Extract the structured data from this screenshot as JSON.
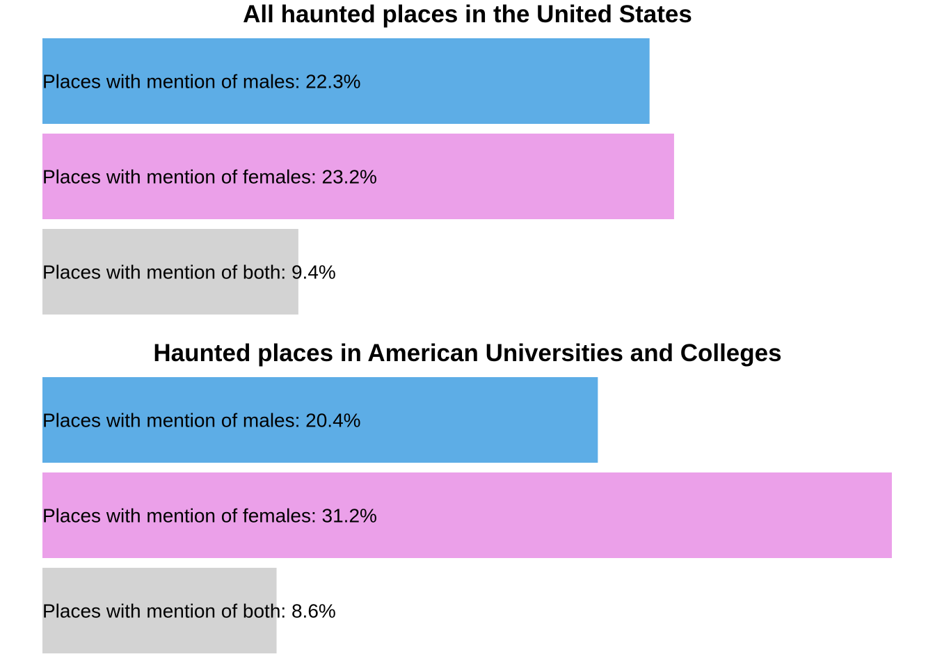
{
  "chart_data": [
    {
      "type": "bar",
      "orientation": "horizontal",
      "title": "All haunted places in the United States",
      "unit": "%",
      "categories": [
        "males",
        "females",
        "both"
      ],
      "labels": [
        "Places with mention of males: 22.3%",
        "Places with mention of females: 23.2%",
        "Places with mention of both: 9.4%"
      ],
      "values": [
        22.3,
        23.2,
        9.4
      ],
      "colors": [
        "#5DADE6",
        "#EBA0E9",
        "#D3D3D3"
      ],
      "xlim": [
        0,
        31.2
      ],
      "grid": false,
      "legend": "none"
    },
    {
      "type": "bar",
      "orientation": "horizontal",
      "title": "Haunted places in American Universities and Colleges",
      "unit": "%",
      "categories": [
        "males",
        "females",
        "both"
      ],
      "labels": [
        "Places with mention of males: 20.4%",
        "Places with mention of females: 31.2%",
        "Places with mention of both: 8.6%"
      ],
      "values": [
        20.4,
        31.2,
        8.6
      ],
      "colors": [
        "#5DADE6",
        "#EBA0E9",
        "#D3D3D3"
      ],
      "xlim": [
        0,
        31.2
      ],
      "grid": false,
      "legend": "none"
    }
  ]
}
